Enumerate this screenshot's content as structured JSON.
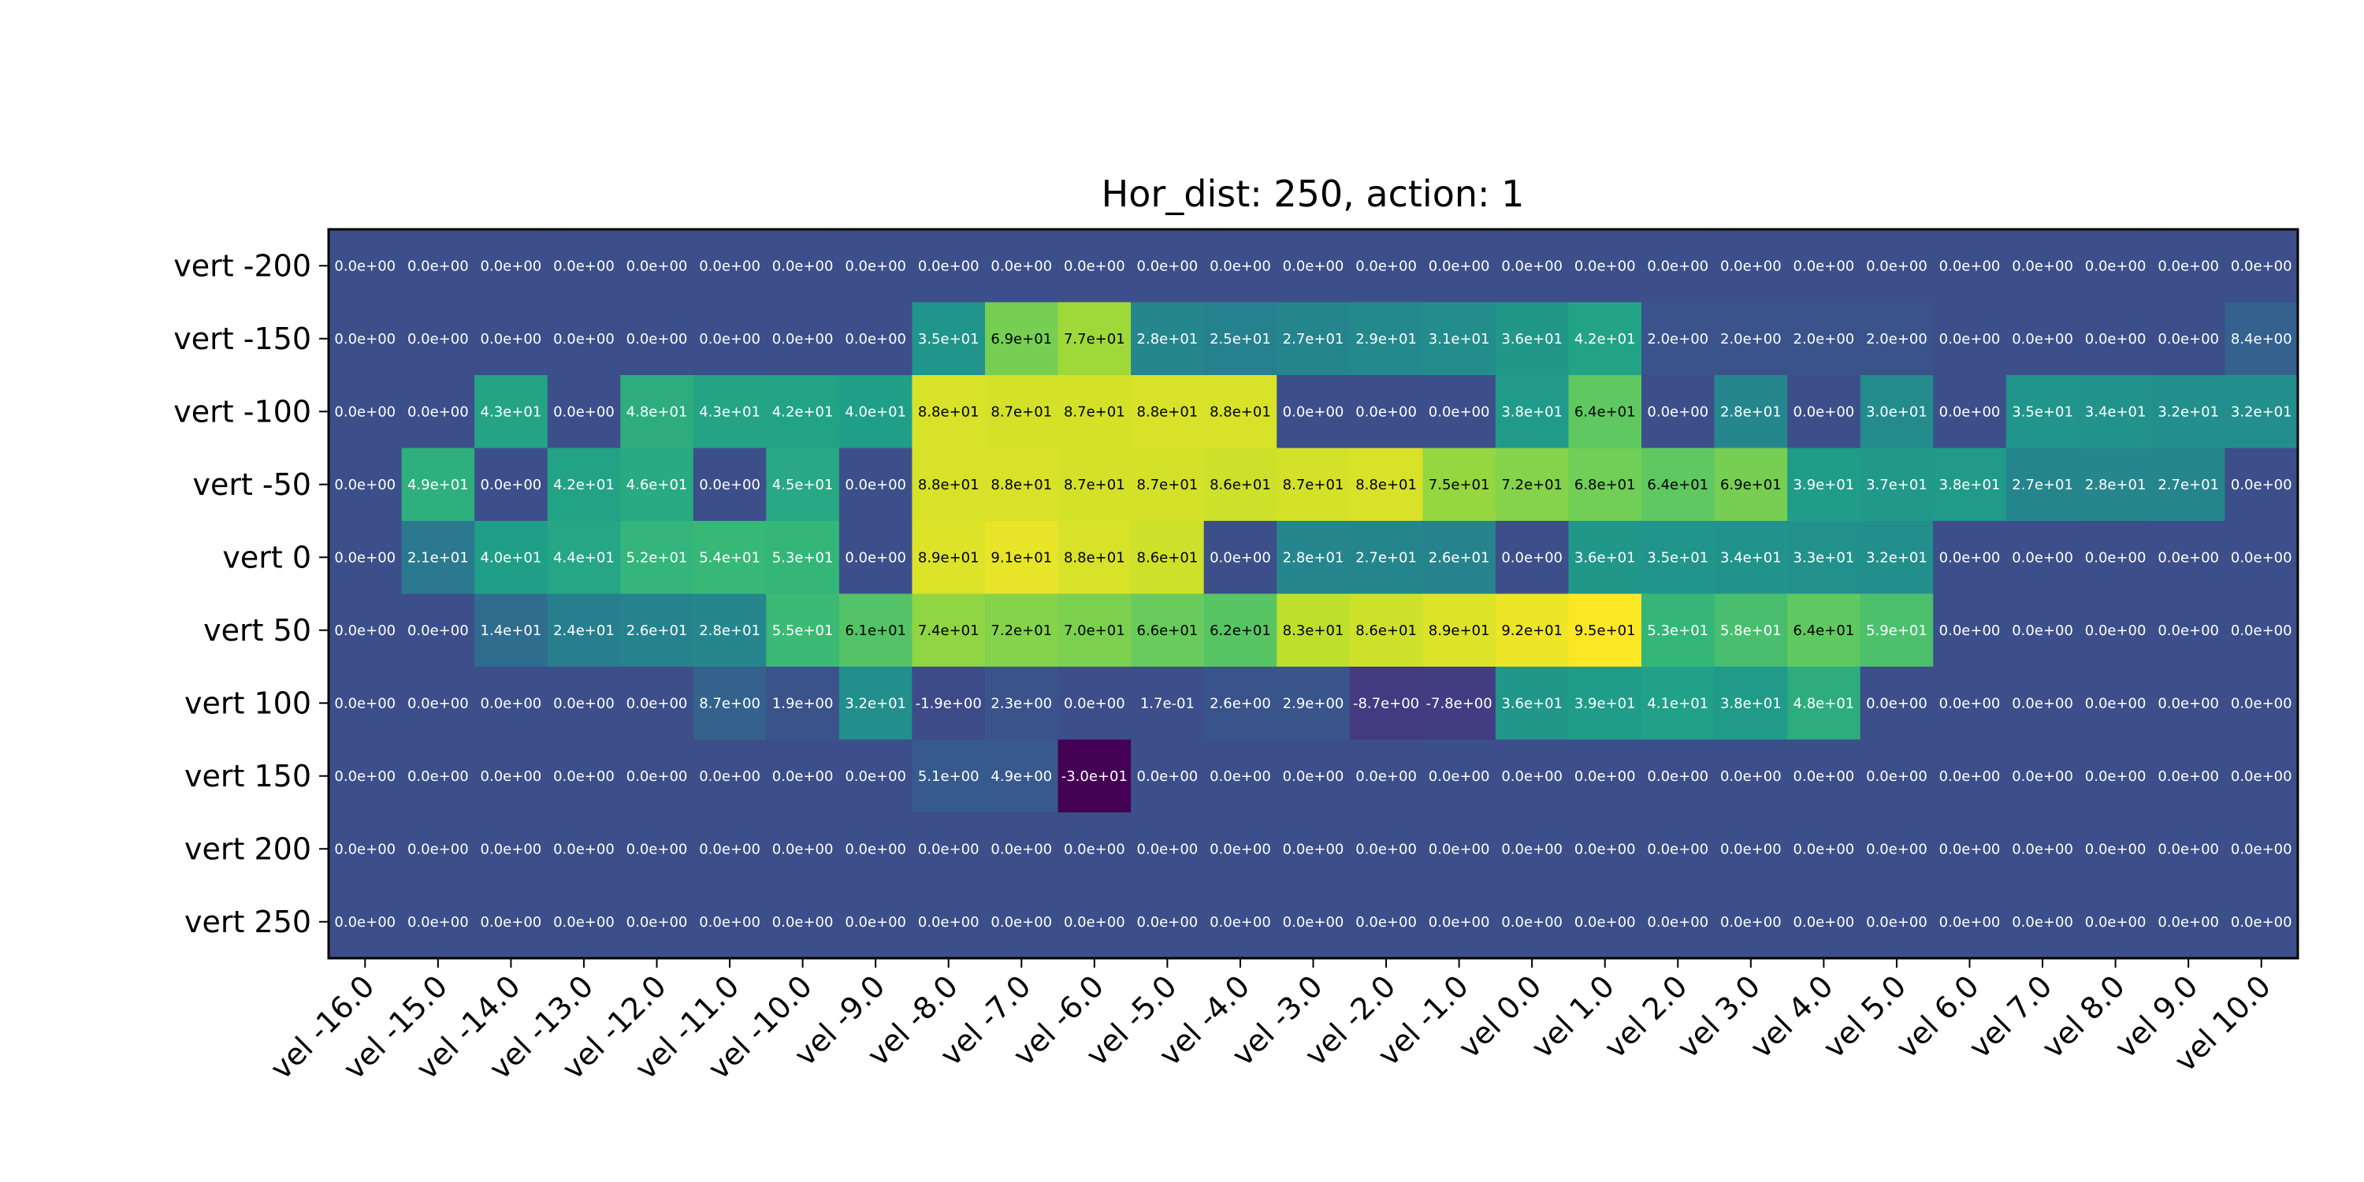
{
  "chart_data": {
    "type": "heatmap",
    "title": "Hor_dist: 250, action: 1",
    "x_labels": [
      "vel -16.0",
      "vel -15.0",
      "vel -14.0",
      "vel -13.0",
      "vel -12.0",
      "vel -11.0",
      "vel -10.0",
      "vel -9.0",
      "vel -8.0",
      "vel -7.0",
      "vel -6.0",
      "vel -5.0",
      "vel -4.0",
      "vel -3.0",
      "vel -2.0",
      "vel -1.0",
      "vel 0.0",
      "vel 1.0",
      "vel 2.0",
      "vel 3.0",
      "vel 4.0",
      "vel 5.0",
      "vel 6.0",
      "vel 7.0",
      "vel 8.0",
      "vel 9.0",
      "vel 10.0"
    ],
    "y_labels": [
      "vert -200",
      "vert -150",
      "vert -100",
      "vert -50",
      "vert 0",
      "vert 50",
      "vert 100",
      "vert 150",
      "vert 200",
      "vert 250"
    ],
    "cell_labels": [
      [
        "0.0e+00",
        "0.0e+00",
        "0.0e+00",
        "0.0e+00",
        "0.0e+00",
        "0.0e+00",
        "0.0e+00",
        "0.0e+00",
        "0.0e+00",
        "0.0e+00",
        "0.0e+00",
        "0.0e+00",
        "0.0e+00",
        "0.0e+00",
        "0.0e+00",
        "0.0e+00",
        "0.0e+00",
        "0.0e+00",
        "0.0e+00",
        "0.0e+00",
        "0.0e+00",
        "0.0e+00",
        "0.0e+00",
        "0.0e+00",
        "0.0e+00",
        "0.0e+00",
        "0.0e+00"
      ],
      [
        "0.0e+00",
        "0.0e+00",
        "0.0e+00",
        "0.0e+00",
        "0.0e+00",
        "0.0e+00",
        "0.0e+00",
        "0.0e+00",
        "3.5e+01",
        "6.9e+01",
        "7.7e+01",
        "2.8e+01",
        "2.5e+01",
        "2.7e+01",
        "2.9e+01",
        "3.1e+01",
        "3.6e+01",
        "4.2e+01",
        "2.0e+00",
        "2.0e+00",
        "2.0e+00",
        "2.0e+00",
        "0.0e+00",
        "0.0e+00",
        "0.0e+00",
        "0.0e+00",
        "8.4e+00"
      ],
      [
        "0.0e+00",
        "0.0e+00",
        "4.3e+01",
        "0.0e+00",
        "4.8e+01",
        "4.3e+01",
        "4.2e+01",
        "4.0e+01",
        "8.8e+01",
        "8.7e+01",
        "8.7e+01",
        "8.8e+01",
        "8.8e+01",
        "0.0e+00",
        "0.0e+00",
        "0.0e+00",
        "3.8e+01",
        "6.4e+01",
        "0.0e+00",
        "2.8e+01",
        "0.0e+00",
        "3.0e+01",
        "0.0e+00",
        "3.5e+01",
        "3.4e+01",
        "3.2e+01",
        "3.2e+01"
      ],
      [
        "0.0e+00",
        "4.9e+01",
        "0.0e+00",
        "4.2e+01",
        "4.6e+01",
        "0.0e+00",
        "4.5e+01",
        "0.0e+00",
        "8.8e+01",
        "8.8e+01",
        "8.7e+01",
        "8.7e+01",
        "8.6e+01",
        "8.7e+01",
        "8.8e+01",
        "7.5e+01",
        "7.2e+01",
        "6.8e+01",
        "6.4e+01",
        "6.9e+01",
        "3.9e+01",
        "3.7e+01",
        "3.8e+01",
        "2.7e+01",
        "2.8e+01",
        "2.7e+01",
        "0.0e+00"
      ],
      [
        "0.0e+00",
        "2.1e+01",
        "4.0e+01",
        "4.4e+01",
        "5.2e+01",
        "5.4e+01",
        "5.3e+01",
        "0.0e+00",
        "8.9e+01",
        "9.1e+01",
        "8.8e+01",
        "8.6e+01",
        "0.0e+00",
        "2.8e+01",
        "2.7e+01",
        "2.6e+01",
        "0.0e+00",
        "3.6e+01",
        "3.5e+01",
        "3.4e+01",
        "3.3e+01",
        "3.2e+01",
        "0.0e+00",
        "0.0e+00",
        "0.0e+00",
        "0.0e+00",
        "0.0e+00"
      ],
      [
        "0.0e+00",
        "0.0e+00",
        "1.4e+01",
        "2.4e+01",
        "2.6e+01",
        "2.8e+01",
        "5.5e+01",
        "6.1e+01",
        "7.4e+01",
        "7.2e+01",
        "7.0e+01",
        "6.6e+01",
        "6.2e+01",
        "8.3e+01",
        "8.6e+01",
        "8.9e+01",
        "9.2e+01",
        "9.5e+01",
        "5.3e+01",
        "5.8e+01",
        "6.4e+01",
        "5.9e+01",
        "0.0e+00",
        "0.0e+00",
        "0.0e+00",
        "0.0e+00",
        "0.0e+00"
      ],
      [
        "0.0e+00",
        "0.0e+00",
        "0.0e+00",
        "0.0e+00",
        "0.0e+00",
        "8.7e+00",
        "1.9e+00",
        "3.2e+01",
        "-1.9e+00",
        "2.3e+00",
        "0.0e+00",
        "1.7e-01",
        "2.6e+00",
        "2.9e+00",
        "-8.7e+00",
        "-7.8e+00",
        "3.6e+01",
        "3.9e+01",
        "4.1e+01",
        "3.8e+01",
        "4.8e+01",
        "0.0e+00",
        "0.0e+00",
        "0.0e+00",
        "0.0e+00",
        "0.0e+00",
        "0.0e+00"
      ],
      [
        "0.0e+00",
        "0.0e+00",
        "0.0e+00",
        "0.0e+00",
        "0.0e+00",
        "0.0e+00",
        "0.0e+00",
        "0.0e+00",
        "5.1e+00",
        "4.9e+00",
        "-3.0e+01",
        "0.0e+00",
        "0.0e+00",
        "0.0e+00",
        "0.0e+00",
        "0.0e+00",
        "0.0e+00",
        "0.0e+00",
        "0.0e+00",
        "0.0e+00",
        "0.0e+00",
        "0.0e+00",
        "0.0e+00",
        "0.0e+00",
        "0.0e+00",
        "0.0e+00",
        "0.0e+00"
      ],
      [
        "0.0e+00",
        "0.0e+00",
        "0.0e+00",
        "0.0e+00",
        "0.0e+00",
        "0.0e+00",
        "0.0e+00",
        "0.0e+00",
        "0.0e+00",
        "0.0e+00",
        "0.0e+00",
        "0.0e+00",
        "0.0e+00",
        "0.0e+00",
        "0.0e+00",
        "0.0e+00",
        "0.0e+00",
        "0.0e+00",
        "0.0e+00",
        "0.0e+00",
        "0.0e+00",
        "0.0e+00",
        "0.0e+00",
        "0.0e+00",
        "0.0e+00",
        "0.0e+00",
        "0.0e+00"
      ],
      [
        "0.0e+00",
        "0.0e+00",
        "0.0e+00",
        "0.0e+00",
        "0.0e+00",
        "0.0e+00",
        "0.0e+00",
        "0.0e+00",
        "0.0e+00",
        "0.0e+00",
        "0.0e+00",
        "0.0e+00",
        "0.0e+00",
        "0.0e+00",
        "0.0e+00",
        "0.0e+00",
        "0.0e+00",
        "0.0e+00",
        "0.0e+00",
        "0.0e+00",
        "0.0e+00",
        "0.0e+00",
        "0.0e+00",
        "0.0e+00",
        "0.0e+00",
        "0.0e+00",
        "0.0e+00"
      ]
    ],
    "colormap": "viridis",
    "grid": false,
    "legend": "none"
  }
}
